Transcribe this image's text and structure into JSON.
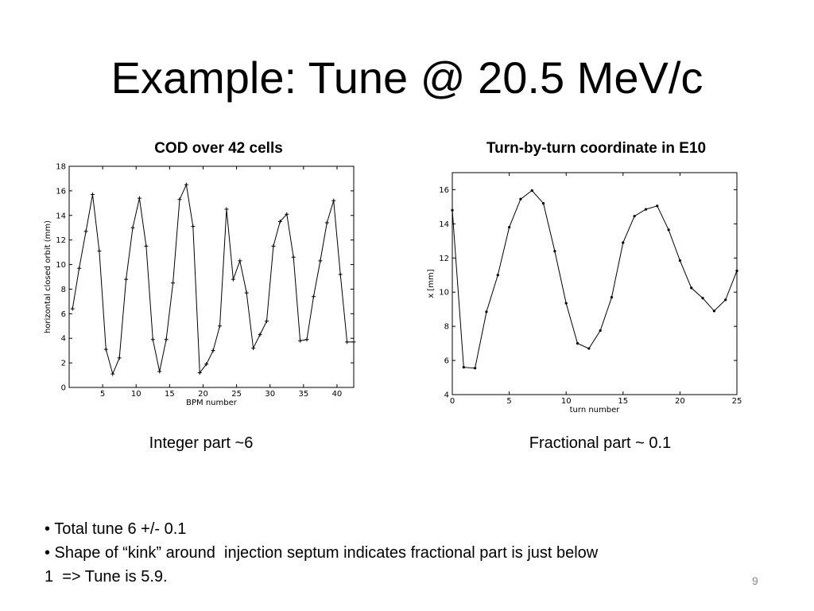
{
  "slide": {
    "title": "Example: Tune @ 20.5 MeV/c",
    "page_number": "9"
  },
  "left_panel": {
    "caption": "COD over 42 cells",
    "note": "Integer part ~6"
  },
  "right_panel": {
    "caption": "Turn-by-turn coordinate in E10",
    "note": "Fractional part ~ 0.1"
  },
  "bullets": [
    "• Total tune 6 +/- 0.1",
    "• Shape of “kink” around  injection septum indicates fractional part is just below",
    "1  => Tune is 5.9."
  ],
  "chart_data": [
    {
      "type": "line",
      "xlabel": "BPM number",
      "ylabel": "horizontal closed orbit (mm)",
      "xlim": [
        0,
        42.5
      ],
      "ylim": [
        0,
        18
      ],
      "xticks": [
        5,
        10,
        15,
        20,
        25,
        30,
        35,
        40
      ],
      "yticks": [
        0,
        2,
        4,
        6,
        8,
        10,
        12,
        14,
        16,
        18
      ],
      "marker": "+",
      "line_color": "#000000",
      "x": [
        0.5,
        1.5,
        2.5,
        3.5,
        4.5,
        5.5,
        6.5,
        7.5,
        8.5,
        9.5,
        10.5,
        11.5,
        12.5,
        13.5,
        14.5,
        15.5,
        16.5,
        17.5,
        18.5,
        19.5,
        20.5,
        21.5,
        22.5,
        23.5,
        24.5,
        25.5,
        26.5,
        27.5,
        28.5,
        29.5,
        30.5,
        31.5,
        32.5,
        33.5,
        34.5,
        35.5,
        36.5,
        37.5,
        38.5,
        39.5,
        40.5,
        41.5,
        42.5
      ],
      "y": [
        6.4,
        9.7,
        12.7,
        15.7,
        11.1,
        3.1,
        1.1,
        2.4,
        8.8,
        13.0,
        15.4,
        11.5,
        3.9,
        1.3,
        3.9,
        8.5,
        15.3,
        16.5,
        13.1,
        1.2,
        1.9,
        3.0,
        5.0,
        14.5,
        8.8,
        10.3,
        7.7,
        3.2,
        4.3,
        5.4,
        11.5,
        13.5,
        14.1,
        10.6,
        3.8,
        3.9,
        7.4,
        10.3,
        13.4,
        15.2,
        9.2,
        3.7,
        3.7
      ]
    },
    {
      "type": "line",
      "xlabel": "turn number",
      "ylabel": "x [mm]",
      "xlim": [
        0,
        25
      ],
      "ylim": [
        4,
        17
      ],
      "xticks": [
        0,
        5,
        10,
        15,
        20,
        25
      ],
      "yticks": [
        4,
        6,
        8,
        10,
        12,
        14,
        16
      ],
      "marker": "dot",
      "line_color": "#000000",
      "x": [
        0,
        1,
        2,
        3,
        4,
        5,
        6,
        7,
        8,
        9,
        10,
        11,
        12,
        13,
        14,
        15,
        16,
        17,
        18,
        19,
        20,
        21,
        22,
        23,
        24,
        25
      ],
      "y": [
        14.8,
        5.6,
        5.55,
        8.85,
        11.0,
        13.8,
        15.45,
        15.95,
        15.2,
        12.4,
        9.35,
        7.0,
        6.7,
        7.75,
        9.7,
        12.9,
        14.45,
        14.85,
        15.05,
        13.65,
        11.85,
        10.25,
        9.65,
        8.9,
        9.55,
        11.25
      ]
    }
  ]
}
